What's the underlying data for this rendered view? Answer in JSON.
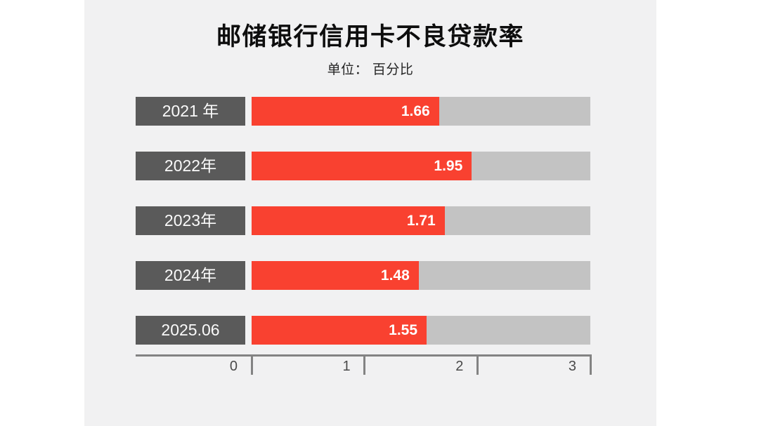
{
  "title": "邮储银行信用卡不良贷款率",
  "subtitle": "单位： 百分比",
  "colors": {
    "page_background": "#ffffff",
    "canvas_background": "#f1f1f2",
    "bar_fill": "#f94130",
    "bar_track": "#c3c3c3",
    "category_box": "#5a5a5a",
    "axis": "#838383",
    "value_text": "#ffffff",
    "tick_text": "#4a4a4a"
  },
  "chart_data": {
    "type": "bar",
    "orientation": "horizontal",
    "title": "邮储银行信用卡不良贷款率",
    "unit_label": "单位： 百分比",
    "categories": [
      "2021 年",
      "2022年",
      "2023年",
      "2024年",
      "2025.06"
    ],
    "values": [
      1.66,
      1.95,
      1.71,
      1.48,
      1.55
    ],
    "value_labels": [
      "1.66",
      "1.95",
      "1.71",
      "1.48",
      "1.55"
    ],
    "xlim": [
      0,
      3
    ],
    "x_ticks": [
      0,
      1,
      2,
      3
    ],
    "grid": false,
    "legend": "none"
  }
}
